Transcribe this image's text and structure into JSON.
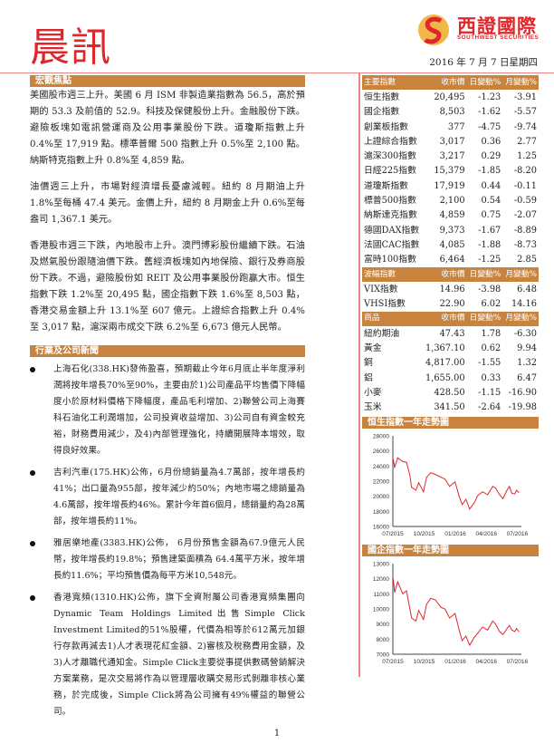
{
  "header": {
    "title": "晨訊",
    "logo": {
      "name_cn": "西證國際",
      "name_en": "SOUTHWEST SECURITIES"
    },
    "date": "2016 年 7 月 7 日星期四"
  },
  "colors": {
    "accent": "#c8843f",
    "brand_red": "#e0262b",
    "rule": "#e8857e",
    "line": "#e0262b"
  },
  "macro": {
    "heading": "宏觀焦點",
    "paragraphs": [
      "美國股市週三上升。美國 6 月 ISM 非製造業指數為 56.5，高於預期的 53.3 及前值的 52.9。科技及保健股份上升。金融股份下跌。避險板塊如電訊營運商及公用事業股份下跌。道瓊斯指數上升 0.4%至 17,919 點。標準普爾 500 指數上升 0.5%至 2,100 點。納斯特克指數上升 0.8%至 4,859 點。",
      "油價週三上升，市場對經濟增長憂慮減輕。紐約 8 月期油上升 1.8%至每桶 47.4 美元。金價上升，紐約 8 月期金上升 0.6%至每盎司 1,367.1 美元。",
      "香港股市週三下跌，內地股市上升。澳門博彩股份繼續下跌。石油及燃氣股份跟隨油價下跌。舊經濟板塊如內地保險、銀行及券商股份下跌。不過，避險股份如 REIT 及公用事業股份跑贏大市。恒生指數下跌 1.2%至 20,495 點，國企指數下跌 1.6%至 8,503 點，香港交易金額上升 13.1%至 607 億元。上證綜合指數上升 0.4%至 3,017 點，滬深兩市成交下跌 6.2%至 6,673 億元人民幣。"
    ]
  },
  "news": {
    "heading": "行業及公司新聞",
    "items": [
      "上海石化(338.HK)發佈盈喜，預期截止今年6月底止半年度淨利潤將按年增長70%至90%，主要由於1)公司產品平均售價下降幅度小於原材料價格下降幅度，產品毛利增加、2)聯營公司上海賽科石油化工利潤增加，公司投資收益增加、3)公司自有資金較充裕，財務費用減少，及4)內部管理強化，持續開展降本增效，取得良好效果。",
      "吉利汽車(175.HK)公佈，6月份總銷量為4.7萬部，按年增長約41%；出口量為955部，按年減少約50%；內地市場之總銷量為4.6萬部，按年增長約46%。累計今年首6個月，總銷量約為28萬部，按年增長約11%。",
      "雅居樂地產(3383.HK)公佈， 6月份預售金額為67.9億元人民幣，按年增長約19.8%；預售建築面積為 64.4萬平方米，按年增長約11.6%；平均預售價為每平方米10,548元。",
      "香港寬頻(1310.HK)公佈，旗下全資附屬公司香港寬頻集團向Dynamic Team Holdings Limited出售Simple Click Investment Limited的51%股權，代價為相等於612萬元加銀行存款再減去1)人才表現花紅金額、2)審核及稅務費用金額，及3)人才離職代通知金。Simple Click主要從事提供數碼營銷解決方案業務，是次交易將作為以管理層收購交易形式剝離非核心業務，於完成後，Simple Click將為公司擁有49%權益的聯營公司。"
    ]
  },
  "markets": {
    "sections": [
      {
        "headers": [
          "主要指數",
          "收市價",
          "日變動%",
          "月變動%"
        ],
        "rows": [
          [
            "恒生指數",
            "20,495",
            "-1.23",
            "-3.91"
          ],
          [
            "國企指數",
            "8,503",
            "-1.62",
            "-5.57"
          ],
          [
            "創業板指數",
            "377",
            "-4.75",
            "-9.74"
          ],
          [
            "上證綜合指數",
            "3,017",
            "0.36",
            "2.77"
          ],
          [
            "滬深300指數",
            "3,217",
            "0.29",
            "1.25"
          ],
          [
            "日經225指數",
            "15,379",
            "-1.85",
            "-8.20"
          ],
          [
            "道瓊斯指數",
            "17,919",
            "0.44",
            "-0.11"
          ],
          [
            "標普500指數",
            "2,100",
            "0.54",
            "-0.59"
          ],
          [
            "納斯達克指數",
            "4,859",
            "0.75",
            "-2.07"
          ],
          [
            "德國DAX指數",
            "9,373",
            "-1.67",
            "-8.89"
          ],
          [
            "法國CAC指數",
            "4,085",
            "-1.88",
            "-8.73"
          ],
          [
            "富時100指數",
            "6,464",
            "-1.25",
            "2.85"
          ]
        ]
      },
      {
        "headers": [
          "波幅指數",
          "收市價",
          "日變動%",
          "月變動%"
        ],
        "rows": [
          [
            "VIX指數",
            "14.96",
            "-3.98",
            "6.48"
          ],
          [
            "VHSI指數",
            "22.90",
            "6.02",
            "14.16"
          ]
        ]
      },
      {
        "headers": [
          "商品",
          "收市價",
          "日變動%",
          "月變動%"
        ],
        "rows": [
          [
            "紐約期油",
            "47.43",
            "1.78",
            "-6.30"
          ],
          [
            "黃金",
            "1,367.10",
            "0.62",
            "9.94"
          ],
          [
            "銅",
            "4,817.00",
            "-1.55",
            "1.32"
          ],
          [
            "鋁",
            "1,655.00",
            "0.33",
            "6.47"
          ],
          [
            "小麥",
            "428.50",
            "-1.15",
            "-16.90"
          ],
          [
            "玉米",
            "341.50",
            "-2.64",
            "-19.98"
          ]
        ]
      }
    ]
  },
  "chart_data": [
    {
      "type": "line",
      "title": "恒生指數一年走勢圖",
      "ylim": [
        16000,
        28000
      ],
      "yticks": [
        "28000",
        "26000",
        "24000",
        "22000",
        "20000",
        "18000",
        "16000"
      ],
      "xticks": [
        "07/2015",
        "10/2015",
        "01/2016",
        "04/2016",
        "07/2016"
      ],
      "xlim": [
        "2015-07-01",
        "2016-07-08"
      ],
      "grid": false,
      "series": [
        {
          "x": [
            "2015-07-02",
            "2015-07-06",
            "2015-07-15",
            "2015-07-30",
            "2015-08-10",
            "2015-08-20",
            "2015-08-25",
            "2015-09-07",
            "2015-09-15",
            "2015-09-29",
            "2015-10-08",
            "2015-10-20",
            "2015-11-03",
            "2015-11-20",
            "2015-12-01",
            "2015-12-15",
            "2015-12-31",
            "2016-01-12",
            "2016-01-21",
            "2016-02-01",
            "2016-02-12",
            "2016-02-25",
            "2016-03-07",
            "2016-03-21",
            "2016-04-05",
            "2016-04-20",
            "2016-04-28",
            "2016-05-10",
            "2016-05-20",
            "2016-06-01",
            "2016-06-08",
            "2016-06-15",
            "2016-06-24",
            "2016-06-29",
            "2016-07-06"
          ],
          "values": [
            24900,
            23800,
            25100,
            24600,
            24500,
            22800,
            21200,
            20800,
            21800,
            20600,
            22500,
            23100,
            22900,
            22500,
            22300,
            21300,
            21900,
            20000,
            18900,
            19600,
            18300,
            19100,
            20100,
            20600,
            20200,
            21300,
            21100,
            20200,
            19700,
            20800,
            21300,
            20400,
            20300,
            20800,
            20500
          ]
        }
      ]
    },
    {
      "type": "line",
      "title": "國企指數一年走勢圖",
      "ylim": [
        7000,
        13000
      ],
      "yticks": [
        "13000",
        "12000",
        "11000",
        "10000",
        "9000",
        "8000",
        "7000"
      ],
      "xticks": [
        "07/2015",
        "10/2015",
        "01/2016",
        "04/2016",
        "07/2016"
      ],
      "xlim": [
        "2015-07-01",
        "2016-07-08"
      ],
      "grid": false,
      "series": [
        {
          "x": [
            "2015-07-02",
            "2015-07-06",
            "2015-07-15",
            "2015-07-30",
            "2015-08-10",
            "2015-08-20",
            "2015-08-25",
            "2015-09-07",
            "2015-09-15",
            "2015-09-29",
            "2015-10-08",
            "2015-10-20",
            "2015-11-03",
            "2015-11-20",
            "2015-12-01",
            "2015-12-15",
            "2015-12-31",
            "2016-01-12",
            "2016-01-21",
            "2016-02-01",
            "2016-02-12",
            "2016-02-25",
            "2016-03-07",
            "2016-03-21",
            "2016-04-05",
            "2016-04-20",
            "2016-04-28",
            "2016-05-10",
            "2016-05-20",
            "2016-06-01",
            "2016-06-08",
            "2016-06-15",
            "2016-06-24",
            "2016-06-29",
            "2016-07-06"
          ],
          "values": [
            12000,
            11100,
            11800,
            11000,
            11200,
            10000,
            9400,
            9200,
            9900,
            9300,
            10300,
            10700,
            10600,
            10100,
            10000,
            9400,
            9700,
            8600,
            7900,
            8200,
            7600,
            8100,
            8400,
            8800,
            8600,
            9200,
            9000,
            8500,
            8300,
            8700,
            8900,
            8600,
            8500,
            8700,
            8500
          ]
        }
      ]
    }
  ],
  "footer": {
    "page_number": "1"
  }
}
